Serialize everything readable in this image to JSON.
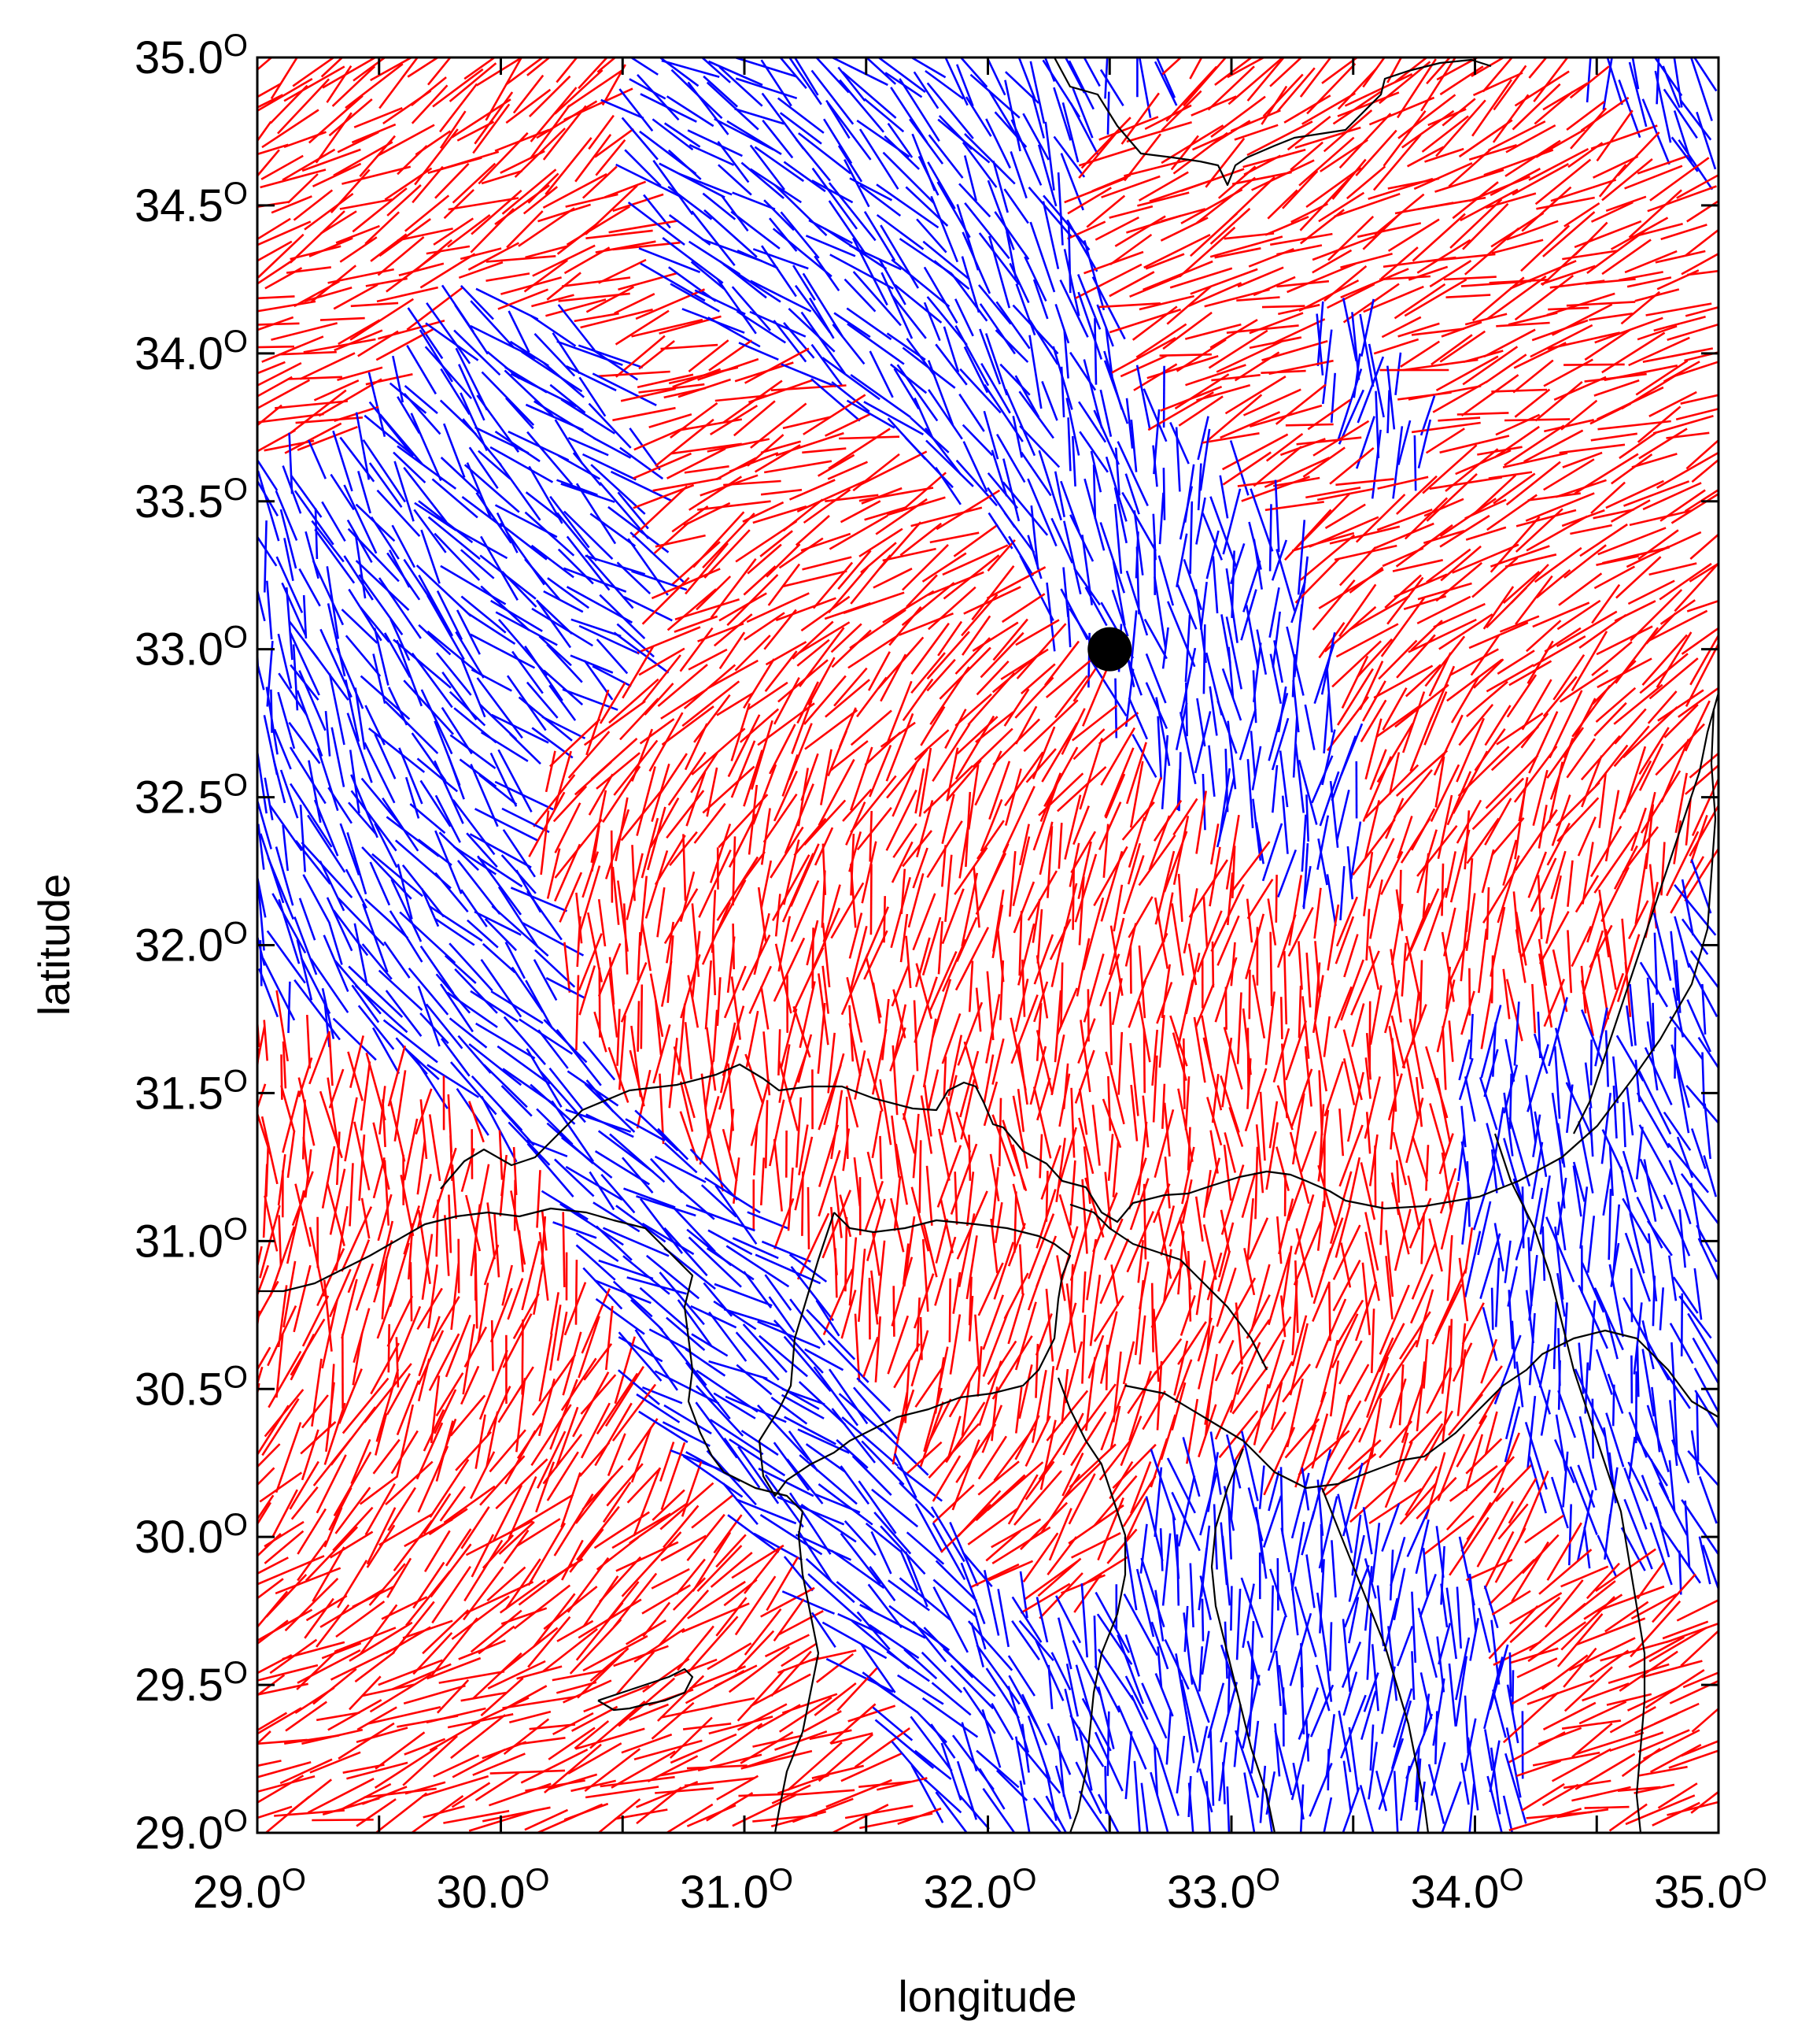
{
  "map": {
    "xlabel": "longitude",
    "ylabel": "latitude",
    "x_range": [
      29.0,
      35.0
    ],
    "y_range": [
      29.0,
      35.0
    ],
    "x_ticks": [
      {
        "value": 29.0,
        "num": "29.0",
        "sup": "O"
      },
      {
        "value": 30.0,
        "num": "30.0",
        "sup": "O"
      },
      {
        "value": 31.0,
        "num": "31.0",
        "sup": "O"
      },
      {
        "value": 32.0,
        "num": "32.0",
        "sup": "O"
      },
      {
        "value": 33.0,
        "num": "33.0",
        "sup": "O"
      },
      {
        "value": 34.0,
        "num": "34.0",
        "sup": "O"
      },
      {
        "value": 35.0,
        "num": "35.0",
        "sup": "O"
      }
    ],
    "y_ticks": [
      {
        "value": 29.0,
        "num": "29.0",
        "sup": "O"
      },
      {
        "value": 29.5,
        "num": "29.5",
        "sup": "O"
      },
      {
        "value": 30.0,
        "num": "30.0",
        "sup": "O"
      },
      {
        "value": 30.5,
        "num": "30.5",
        "sup": "O"
      },
      {
        "value": 31.0,
        "num": "31.0",
        "sup": "O"
      },
      {
        "value": 31.5,
        "num": "31.5",
        "sup": "O"
      },
      {
        "value": 32.0,
        "num": "32.0",
        "sup": "O"
      },
      {
        "value": 32.5,
        "num": "32.5",
        "sup": "O"
      },
      {
        "value": 33.0,
        "num": "33.0",
        "sup": "O"
      },
      {
        "value": 33.5,
        "num": "33.5",
        "sup": "O"
      },
      {
        "value": 34.0,
        "num": "34.0",
        "sup": "O"
      },
      {
        "value": 34.5,
        "num": "34.5",
        "sup": "O"
      },
      {
        "value": 35.0,
        "num": "35.0",
        "sup": "O"
      }
    ],
    "colors": {
      "red_segments": "#ff0000",
      "blue_segments": "#0000ff",
      "coastline": "#000000",
      "marker": "#000000"
    },
    "marker": {
      "lon": 32.5,
      "lat": 33.0
    }
  }
}
